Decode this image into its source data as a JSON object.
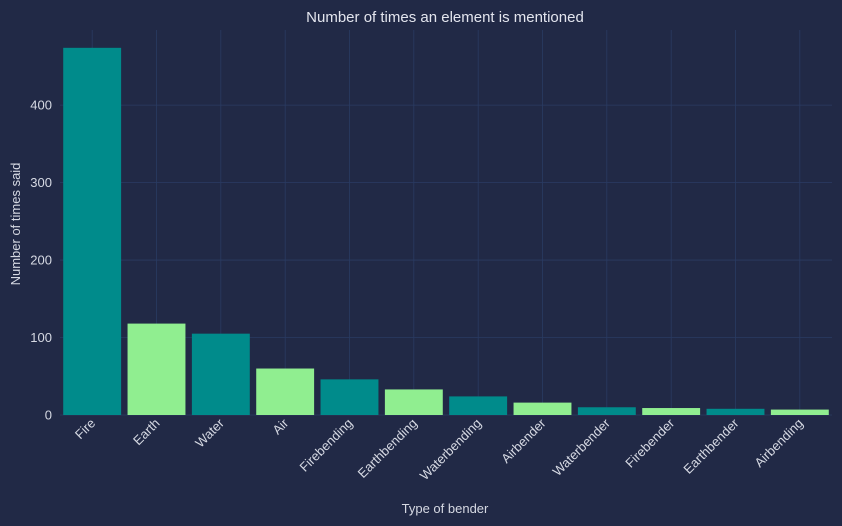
{
  "chart_data": {
    "type": "bar",
    "title": "Number of times an element is mentioned",
    "xlabel": "Type of bender",
    "ylabel": "Number of times said",
    "categories": [
      "Fire",
      "Earth",
      "Water",
      "Air",
      "Firebending",
      "Earthbending",
      "Waterbending",
      "Airbender",
      "Waterbender",
      "Firebender",
      "Earthbender",
      "Airbending"
    ],
    "values": [
      474,
      118,
      105,
      60,
      46,
      33,
      24,
      16,
      10,
      9,
      8,
      7
    ],
    "bar_colors": [
      "#008b8b",
      "#90ee90",
      "#008b8b",
      "#90ee90",
      "#008b8b",
      "#90ee90",
      "#008b8b",
      "#90ee90",
      "#008b8b",
      "#90ee90",
      "#008b8b",
      "#90ee90"
    ],
    "yticks": [
      0,
      100,
      200,
      300,
      400
    ],
    "ylim": [
      0,
      497
    ],
    "grid": true,
    "background": "#212946",
    "grid_color": "#2a3b63"
  }
}
